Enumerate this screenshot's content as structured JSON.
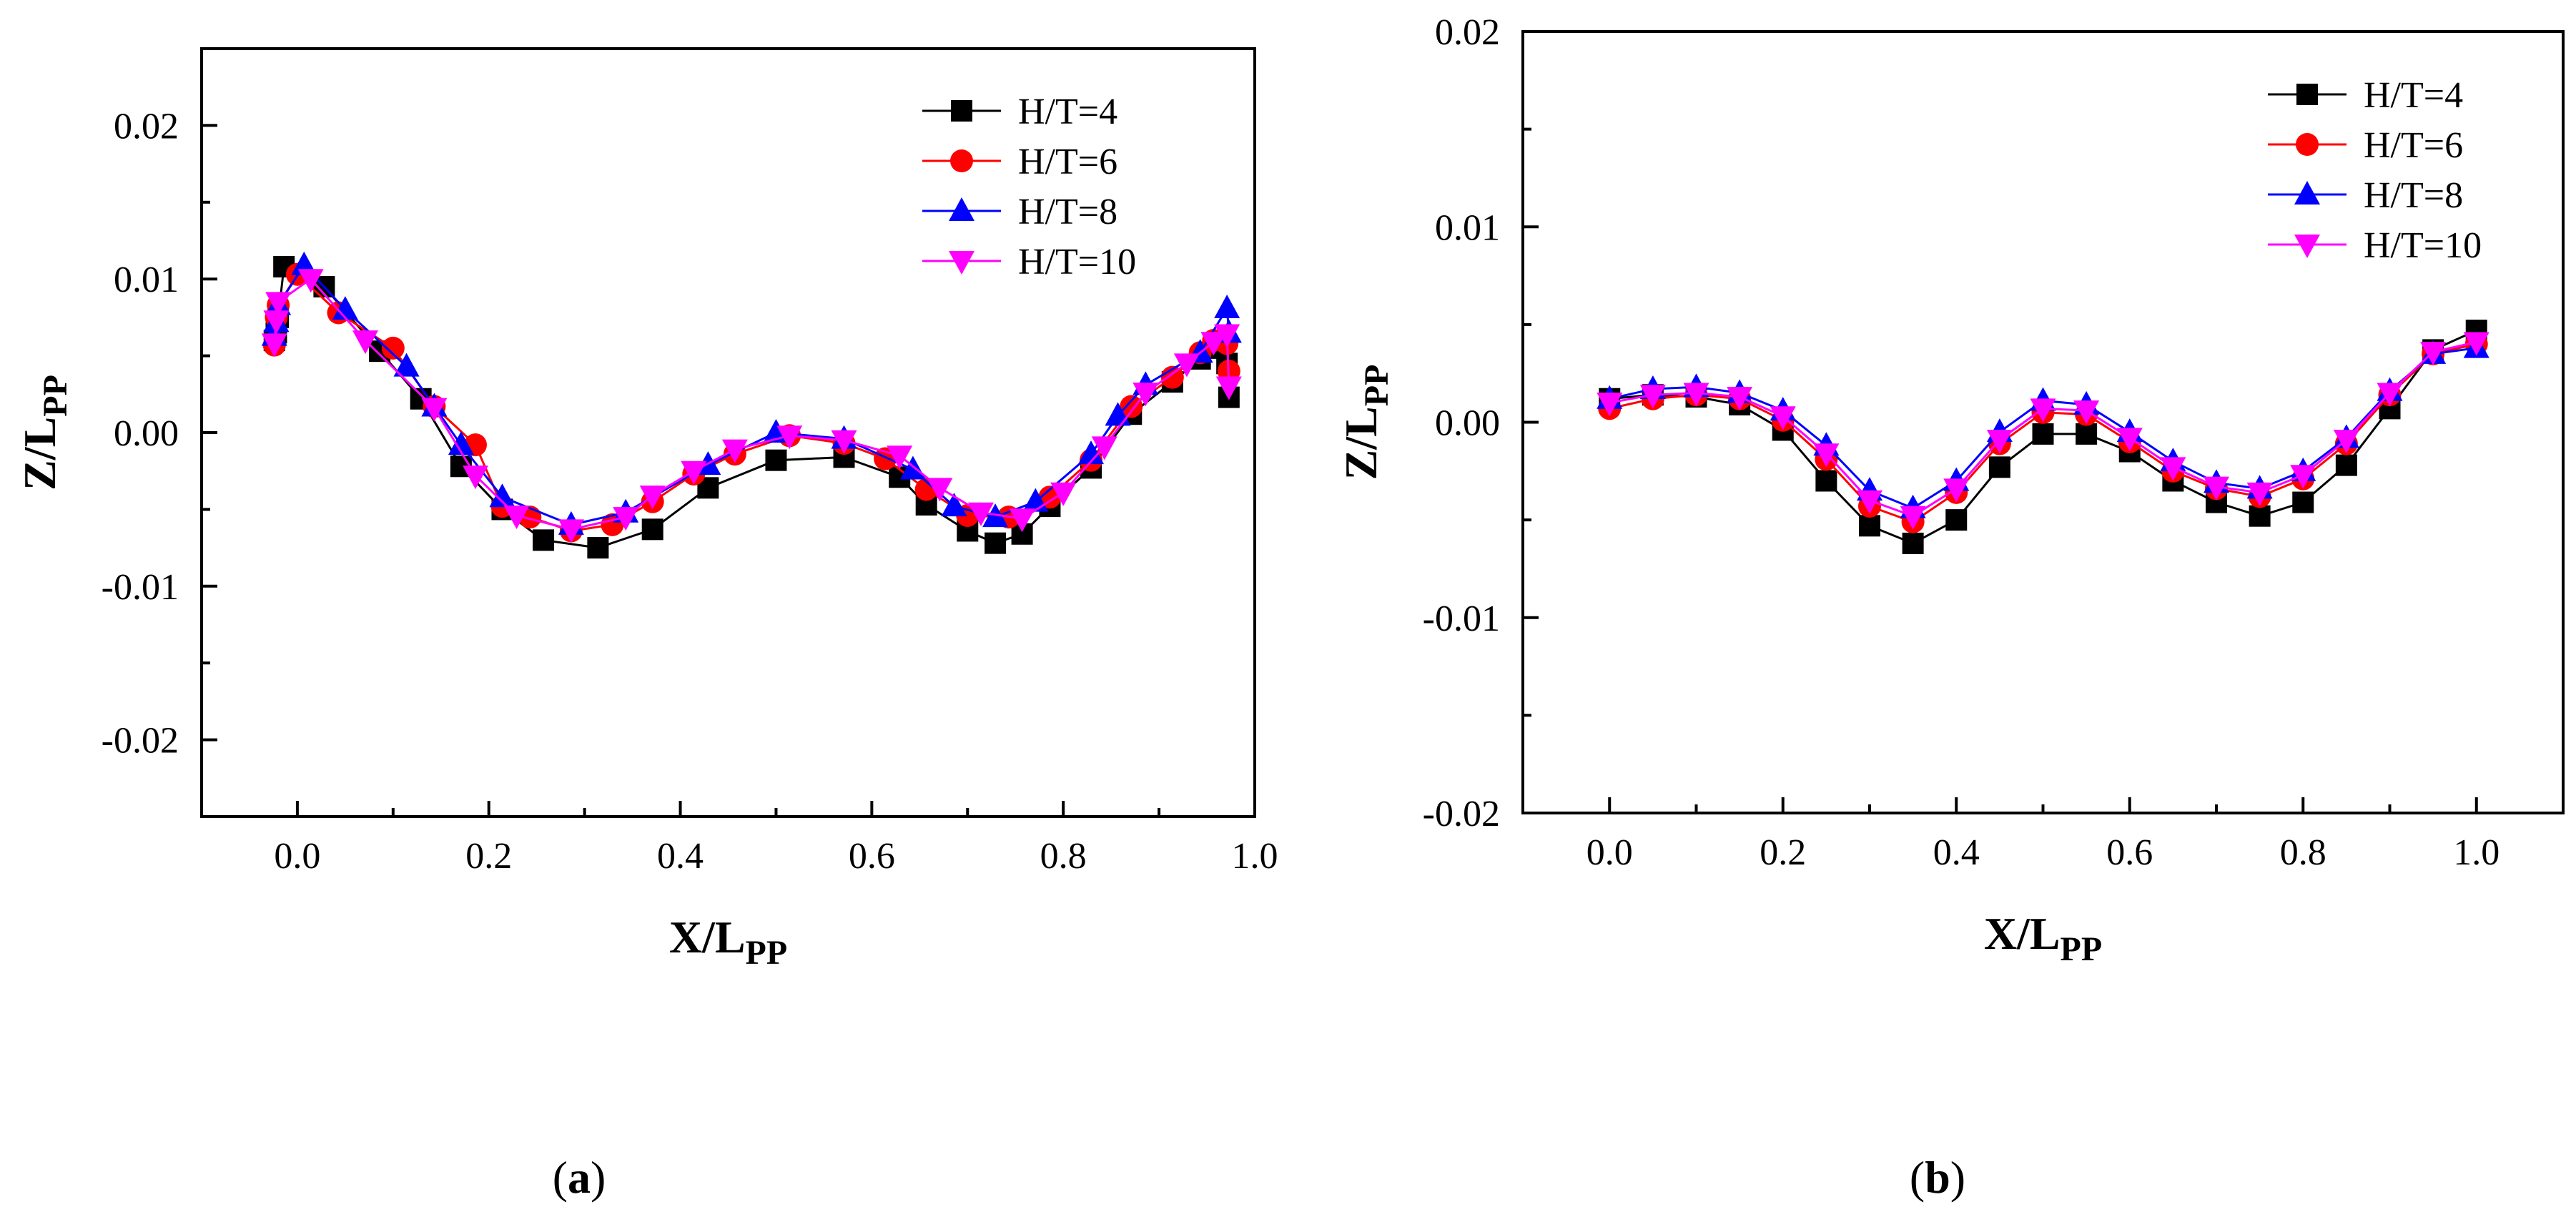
{
  "chart_data": [
    {
      "type": "line",
      "panel_label": "a",
      "xlabel": "X/L",
      "xlabel_sub": "PP",
      "ylabel": "Z/L",
      "ylabel_sub": "PP",
      "xlim": [
        -0.1,
        1.0
      ],
      "ylim": [
        -0.025,
        0.025
      ],
      "xticks": [
        0.0,
        0.2,
        0.4,
        0.6,
        0.8,
        1.0
      ],
      "xtick_labels": [
        "0.0",
        "0.2",
        "0.4",
        "0.6",
        "0.8",
        "1.0"
      ],
      "yticks": [
        -0.02,
        -0.01,
        0.0,
        0.01,
        0.02
      ],
      "ytick_labels": [
        "-0.02",
        "-0.01",
        "0.00",
        "0.01",
        "0.02"
      ],
      "grid": false,
      "legend_position": "top-right",
      "series": [
        {
          "name": "H/T=4",
          "color": "#000000",
          "marker": "square",
          "x": [
            -0.024,
            -0.022,
            -0.02,
            -0.014,
            0.028,
            0.086,
            0.129,
            0.171,
            0.214,
            0.257,
            0.314,
            0.371,
            0.429,
            0.5,
            0.571,
            0.629,
            0.657,
            0.7,
            0.729,
            0.757,
            0.786,
            0.829,
            0.871,
            0.914,
            0.943,
            0.957,
            0.971,
            0.973
          ],
          "y": [
            0.006,
            0.0065,
            0.0075,
            0.0108,
            0.0095,
            0.0053,
            0.0022,
            -0.0022,
            -0.005,
            -0.007,
            -0.0075,
            -0.0063,
            -0.0036,
            -0.0018,
            -0.0016,
            -0.0029,
            -0.0047,
            -0.0064,
            -0.0072,
            -0.0066,
            -0.0048,
            -0.0023,
            0.0012,
            0.0033,
            0.0048,
            0.0055,
            0.0045,
            0.0023
          ]
        },
        {
          "name": "H/T=6",
          "color": "#ff0000",
          "marker": "circle",
          "x": [
            -0.024,
            -0.022,
            -0.02,
            0.0,
            0.043,
            0.1,
            0.143,
            0.186,
            0.214,
            0.243,
            0.286,
            0.329,
            0.371,
            0.414,
            0.457,
            0.514,
            0.571,
            0.614,
            0.657,
            0.7,
            0.743,
            0.786,
            0.829,
            0.871,
            0.914,
            0.943,
            0.957,
            0.971,
            0.973
          ],
          "y": [
            0.0057,
            0.0075,
            0.0083,
            0.0103,
            0.0078,
            0.0055,
            0.0017,
            -0.0008,
            -0.0048,
            -0.0055,
            -0.0064,
            -0.006,
            -0.0045,
            -0.0027,
            -0.0014,
            -0.0002,
            -0.0007,
            -0.0017,
            -0.0037,
            -0.0054,
            -0.0055,
            -0.0042,
            -0.0018,
            0.0017,
            0.0036,
            0.0052,
            0.006,
            0.0058,
            0.004
          ]
        },
        {
          "name": "H/T=8",
          "color": "#0000ff",
          "marker": "triangle-up",
          "x": [
            -0.024,
            -0.022,
            -0.02,
            0.007,
            0.05,
            0.114,
            0.143,
            0.171,
            0.214,
            0.286,
            0.343,
            0.429,
            0.5,
            0.571,
            0.643,
            0.686,
            0.729,
            0.771,
            0.829,
            0.857,
            0.886,
            0.943,
            0.971,
            0.973
          ],
          "y": [
            0.0063,
            0.0072,
            0.0083,
            0.0109,
            0.008,
            0.0043,
            0.0017,
            -0.0008,
            -0.0042,
            -0.006,
            -0.0052,
            -0.0021,
            0.0,
            -0.0004,
            -0.0024,
            -0.0048,
            -0.0055,
            -0.0045,
            -0.0014,
            0.0011,
            0.0031,
            0.0052,
            0.0081,
            0.0065
          ]
        },
        {
          "name": "H/T=10",
          "color": "#ff00ff",
          "marker": "triangle-down",
          "x": [
            -0.024,
            -0.022,
            -0.02,
            0.014,
            0.071,
            0.143,
            0.186,
            0.229,
            0.286,
            0.343,
            0.371,
            0.414,
            0.457,
            0.514,
            0.571,
            0.629,
            0.671,
            0.714,
            0.757,
            0.8,
            0.843,
            0.886,
            0.929,
            0.957,
            0.971,
            0.973
          ],
          "y": [
            0.0058,
            0.0073,
            0.0085,
            0.01,
            0.006,
            0.0016,
            -0.0028,
            -0.0054,
            -0.0063,
            -0.0055,
            -0.0041,
            -0.0025,
            -0.0011,
            -0.0002,
            -0.0005,
            -0.0015,
            -0.0036,
            -0.0052,
            -0.0056,
            -0.0039,
            -0.0009,
            0.0026,
            0.0045,
            0.0059,
            0.0064,
            0.003
          ]
        }
      ]
    },
    {
      "type": "line",
      "panel_label": "b",
      "xlabel": "X/L",
      "xlabel_sub": "PP",
      "ylabel": "Z/L",
      "ylabel_sub": "PP",
      "xlim": [
        -0.1,
        1.1
      ],
      "ylim": [
        -0.02,
        0.02
      ],
      "xticks": [
        0.0,
        0.2,
        0.4,
        0.6,
        0.8,
        1.0
      ],
      "xtick_labels": [
        "0.0",
        "0.2",
        "0.4",
        "0.6",
        "0.8",
        "1.0"
      ],
      "yticks": [
        -0.02,
        -0.01,
        0.0,
        0.01,
        0.02
      ],
      "ytick_labels": [
        "-0.02",
        "-0.01",
        "0.00",
        "0.01",
        "0.02"
      ],
      "grid": false,
      "legend_position": "top-right",
      "series": [
        {
          "name": "H/T=4",
          "color": "#000000",
          "marker": "square",
          "x": [
            0.0,
            0.05,
            0.1,
            0.15,
            0.2,
            0.25,
            0.3,
            0.35,
            0.4,
            0.45,
            0.5,
            0.55,
            0.6,
            0.65,
            0.7,
            0.75,
            0.8,
            0.85,
            0.9,
            0.95,
            1.0
          ],
          "y": [
            0.0012,
            0.0014,
            0.0013,
            0.0009,
            -0.0004,
            -0.003,
            -0.0053,
            -0.0062,
            -0.005,
            -0.0023,
            -0.0006,
            -0.0006,
            -0.0015,
            -0.003,
            -0.0041,
            -0.0048,
            -0.0041,
            -0.0022,
            0.0007,
            0.0037,
            0.0047
          ]
        },
        {
          "name": "H/T=6",
          "color": "#ff0000",
          "marker": "circle",
          "x": [
            0.0,
            0.05,
            0.1,
            0.15,
            0.2,
            0.25,
            0.3,
            0.35,
            0.4,
            0.45,
            0.5,
            0.55,
            0.6,
            0.65,
            0.7,
            0.75,
            0.8,
            0.85,
            0.9,
            0.95,
            1.0
          ],
          "y": [
            0.0007,
            0.0012,
            0.0014,
            0.0012,
            0.0001,
            -0.0019,
            -0.0043,
            -0.0051,
            -0.0036,
            -0.0011,
            0.0005,
            0.0004,
            -0.001,
            -0.0025,
            -0.0034,
            -0.0038,
            -0.0029,
            -0.0011,
            0.0014,
            0.0035,
            0.004
          ]
        },
        {
          "name": "H/T=8",
          "color": "#0000ff",
          "marker": "triangle-up",
          "x": [
            0.0,
            0.05,
            0.1,
            0.15,
            0.2,
            0.25,
            0.3,
            0.35,
            0.4,
            0.45,
            0.5,
            0.55,
            0.6,
            0.65,
            0.7,
            0.75,
            0.8,
            0.85,
            0.9,
            0.95,
            1.0
          ],
          "y": [
            0.0012,
            0.0017,
            0.0018,
            0.0015,
            0.0006,
            -0.0012,
            -0.0035,
            -0.0044,
            -0.003,
            -0.0005,
            0.0011,
            0.0009,
            -0.0005,
            -0.002,
            -0.0031,
            -0.0034,
            -0.0025,
            -0.0008,
            0.0016,
            0.0035,
            0.0038
          ]
        },
        {
          "name": "H/T=10",
          "color": "#ff00ff",
          "marker": "triangle-down",
          "x": [
            0.0,
            0.05,
            0.1,
            0.15,
            0.2,
            0.25,
            0.3,
            0.35,
            0.4,
            0.45,
            0.5,
            0.55,
            0.6,
            0.65,
            0.7,
            0.75,
            0.8,
            0.85,
            0.9,
            0.95,
            1.0
          ],
          "y": [
            0.001,
            0.0014,
            0.0015,
            0.0013,
            0.0003,
            -0.0016,
            -0.004,
            -0.0048,
            -0.0034,
            -0.0009,
            0.0007,
            0.0006,
            -0.0008,
            -0.0023,
            -0.0033,
            -0.0036,
            -0.0027,
            -0.0009,
            0.0015,
            0.0036,
            0.0041
          ]
        }
      ]
    }
  ]
}
